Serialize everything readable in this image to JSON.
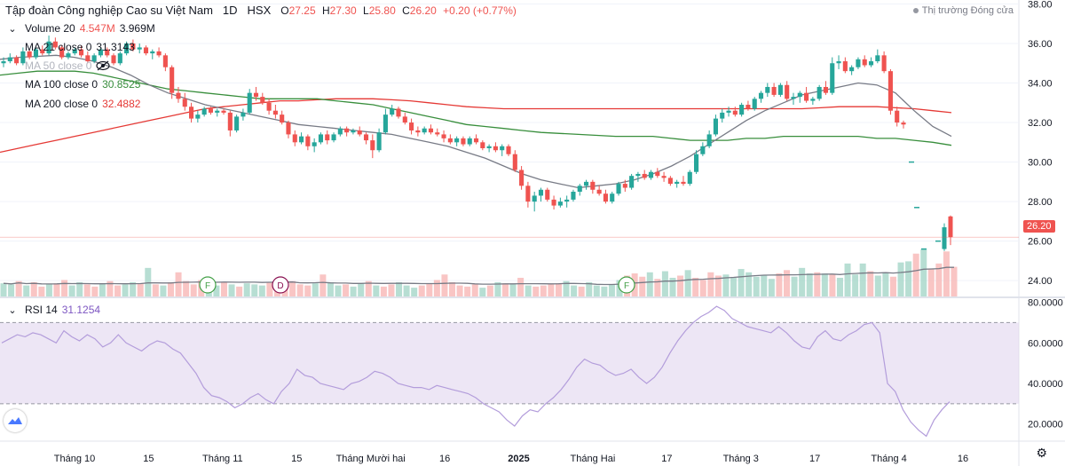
{
  "header": {
    "title": "Tập đoàn Công nghiệp Cao su Việt Nam",
    "interval": "1D",
    "exchange": "HSX",
    "open_label": "O",
    "open": "27.25",
    "high_label": "H",
    "high": "27.30",
    "low_label": "L",
    "low": "25.80",
    "close_label": "C",
    "close": "26.20",
    "change": "+0.20 (+0.77%)",
    "market_status": "Thị trường Đóng cửa"
  },
  "legends": {
    "volume": {
      "name": "Volume 20",
      "v1": "4.547M",
      "v2": "3.969M"
    },
    "ma21": {
      "name": "MA 21 close 0",
      "value": "31.3143"
    },
    "ma50": {
      "name": "MA 50 close 0",
      "value": ""
    },
    "ma100": {
      "name": "MA 100 close 0",
      "value": "30.8525"
    },
    "ma200": {
      "name": "MA 200 close 0",
      "value": "32.4882"
    },
    "rsi": {
      "name": "RSI 14",
      "value": "31.1254"
    }
  },
  "last_price_tag": "26.20",
  "colors": {
    "up": "#26a69a",
    "down": "#ef5350",
    "ma21": "#787b86",
    "ma100": "#388e3c",
    "ma200": "#e53935",
    "rsi": "#b39ddb",
    "rsi_band": "#e1d5ef"
  },
  "markers": [
    "F",
    "D",
    "F"
  ],
  "chart_data": {
    "type": "candlestick",
    "y_ticks": [
      "38.00",
      "36.00",
      "34.00",
      "32.00",
      "30.00",
      "28.00",
      "26.00",
      "24.00"
    ],
    "y_range": [
      23.2,
      38.2
    ],
    "rsi_ticks": [
      "80.0000",
      "60.0000",
      "40.0000",
      "20.0000"
    ],
    "rsi_range": [
      12,
      82
    ],
    "rsi_band": [
      30,
      70
    ],
    "x_labels": [
      "Tháng 10",
      "15",
      "Tháng 11",
      "15",
      "Tháng Mười hai",
      "16",
      "2025",
      "Tháng Hai",
      "17",
      "Tháng 3",
      "17",
      "Tháng 4",
      "16"
    ],
    "x_label_bold_index": 6,
    "candles": [
      [
        35.0,
        35.3,
        34.8,
        35.1
      ],
      [
        35.1,
        35.5,
        35.0,
        35.3
      ],
      [
        35.3,
        35.4,
        34.9,
        35.0
      ],
      [
        35.0,
        35.8,
        34.9,
        35.6
      ],
      [
        35.6,
        35.7,
        35.2,
        35.3
      ],
      [
        35.3,
        35.8,
        35.2,
        35.7
      ],
      [
        35.7,
        35.9,
        35.4,
        35.5
      ],
      [
        35.5,
        36.4,
        35.4,
        36.1
      ],
      [
        36.1,
        36.3,
        35.7,
        35.8
      ],
      [
        35.8,
        35.9,
        35.2,
        35.3
      ],
      [
        35.3,
        35.6,
        35.2,
        35.5
      ],
      [
        35.5,
        35.8,
        35.4,
        35.7
      ],
      [
        35.7,
        35.9,
        35.3,
        35.4
      ],
      [
        35.4,
        35.6,
        35.0,
        35.1
      ],
      [
        35.1,
        35.5,
        35.0,
        35.4
      ],
      [
        35.4,
        35.8,
        35.3,
        35.7
      ],
      [
        35.7,
        35.8,
        35.3,
        35.4
      ],
      [
        35.4,
        35.5,
        34.9,
        35.0
      ],
      [
        35.0,
        35.6,
        34.9,
        35.5
      ],
      [
        35.5,
        36.1,
        35.4,
        36.0
      ],
      [
        36.0,
        36.2,
        35.6,
        35.7
      ],
      [
        35.7,
        36.0,
        35.5,
        35.8
      ],
      [
        35.8,
        35.9,
        35.4,
        35.5
      ],
      [
        35.5,
        35.7,
        35.2,
        35.6
      ],
      [
        35.6,
        35.8,
        35.3,
        35.4
      ],
      [
        35.4,
        35.5,
        34.6,
        34.8
      ],
      [
        34.8,
        34.9,
        33.2,
        33.5
      ],
      [
        33.5,
        33.8,
        33.0,
        33.2
      ],
      [
        33.2,
        33.5,
        32.6,
        32.8
      ],
      [
        32.8,
        33.0,
        32.0,
        32.2
      ],
      [
        32.2,
        32.6,
        32.0,
        32.4
      ],
      [
        32.4,
        32.8,
        32.3,
        32.7
      ],
      [
        32.7,
        32.8,
        32.4,
        32.5
      ],
      [
        32.5,
        32.7,
        32.3,
        32.6
      ],
      [
        32.6,
        32.7,
        32.4,
        32.5
      ],
      [
        32.5,
        32.6,
        31.3,
        31.6
      ],
      [
        31.6,
        32.4,
        31.5,
        32.3
      ],
      [
        32.3,
        32.7,
        32.1,
        32.5
      ],
      [
        32.5,
        33.7,
        32.4,
        33.5
      ],
      [
        33.5,
        33.8,
        33.1,
        33.3
      ],
      [
        33.3,
        33.5,
        32.9,
        33.0
      ],
      [
        33.0,
        33.2,
        32.4,
        32.6
      ],
      [
        32.6,
        32.9,
        32.2,
        32.4
      ],
      [
        32.4,
        32.6,
        31.9,
        32.0
      ],
      [
        32.0,
        32.1,
        31.2,
        31.4
      ],
      [
        31.4,
        31.6,
        30.8,
        31.0
      ],
      [
        31.0,
        31.5,
        30.9,
        31.3
      ],
      [
        31.3,
        31.4,
        30.6,
        30.8
      ],
      [
        30.8,
        31.2,
        30.5,
        31.0
      ],
      [
        31.0,
        31.5,
        30.9,
        31.4
      ],
      [
        31.4,
        31.6,
        30.9,
        31.1
      ],
      [
        31.1,
        31.5,
        31.0,
        31.4
      ],
      [
        31.4,
        31.8,
        31.3,
        31.7
      ],
      [
        31.7,
        31.8,
        31.3,
        31.5
      ],
      [
        31.5,
        31.7,
        31.4,
        31.6
      ],
      [
        31.6,
        31.8,
        31.3,
        31.4
      ],
      [
        31.4,
        31.5,
        30.9,
        31.1
      ],
      [
        31.1,
        31.4,
        30.2,
        30.6
      ],
      [
        30.6,
        31.7,
        30.5,
        31.5
      ],
      [
        31.5,
        32.7,
        31.4,
        32.4
      ],
      [
        32.4,
        32.9,
        32.3,
        32.7
      ],
      [
        32.7,
        32.8,
        32.2,
        32.3
      ],
      [
        32.3,
        32.5,
        31.9,
        32.0
      ],
      [
        32.0,
        32.2,
        31.4,
        31.6
      ],
      [
        31.6,
        31.8,
        31.3,
        31.5
      ],
      [
        31.5,
        31.8,
        31.4,
        31.7
      ],
      [
        31.7,
        31.9,
        31.4,
        31.5
      ],
      [
        31.5,
        31.7,
        31.3,
        31.4
      ],
      [
        31.4,
        31.6,
        31.0,
        31.2
      ],
      [
        31.2,
        31.4,
        30.9,
        31.0
      ],
      [
        31.0,
        31.3,
        30.8,
        31.2
      ],
      [
        31.2,
        31.3,
        30.8,
        30.9
      ],
      [
        30.9,
        31.3,
        30.8,
        31.2
      ],
      [
        31.2,
        31.4,
        30.9,
        31.0
      ],
      [
        31.0,
        31.1,
        30.6,
        30.7
      ],
      [
        30.7,
        30.9,
        30.5,
        30.8
      ],
      [
        30.8,
        31.0,
        30.5,
        30.6
      ],
      [
        30.6,
        30.9,
        30.3,
        30.8
      ],
      [
        30.8,
        30.9,
        30.3,
        30.4
      ],
      [
        30.4,
        30.6,
        29.5,
        29.6
      ],
      [
        29.6,
        29.8,
        28.6,
        28.8
      ],
      [
        28.8,
        29.0,
        27.7,
        28.0
      ],
      [
        28.0,
        28.5,
        27.5,
        28.3
      ],
      [
        28.3,
        28.7,
        28.0,
        28.6
      ],
      [
        28.6,
        28.7,
        28.0,
        28.1
      ],
      [
        28.1,
        28.3,
        27.6,
        27.8
      ],
      [
        27.8,
        28.2,
        27.7,
        28.0
      ],
      [
        28.0,
        28.3,
        27.7,
        28.1
      ],
      [
        28.1,
        28.6,
        28.0,
        28.5
      ],
      [
        28.5,
        28.9,
        28.3,
        28.8
      ],
      [
        28.8,
        29.1,
        28.6,
        29.0
      ],
      [
        29.0,
        29.1,
        28.4,
        28.6
      ],
      [
        28.6,
        28.8,
        28.3,
        28.4
      ],
      [
        28.4,
        28.6,
        27.9,
        28.0
      ],
      [
        28.0,
        28.5,
        27.9,
        28.4
      ],
      [
        28.4,
        29.0,
        28.3,
        28.9
      ],
      [
        28.9,
        29.1,
        28.5,
        28.7
      ],
      [
        28.7,
        29.4,
        28.6,
        29.3
      ],
      [
        29.3,
        29.5,
        29.0,
        29.4
      ],
      [
        29.4,
        29.6,
        29.1,
        29.2
      ],
      [
        29.2,
        29.6,
        29.1,
        29.5
      ],
      [
        29.5,
        29.7,
        29.2,
        29.3
      ],
      [
        29.3,
        29.5,
        29.0,
        29.2
      ],
      [
        29.2,
        29.3,
        28.8,
        28.9
      ],
      [
        28.9,
        29.1,
        28.7,
        29.0
      ],
      [
        29.0,
        29.3,
        28.8,
        28.9
      ],
      [
        28.9,
        29.6,
        28.8,
        29.5
      ],
      [
        29.5,
        30.6,
        29.4,
        30.4
      ],
      [
        30.4,
        31.0,
        30.3,
        30.8
      ],
      [
        30.8,
        31.6,
        30.7,
        31.4
      ],
      [
        31.4,
        32.4,
        31.3,
        32.2
      ],
      [
        32.2,
        32.7,
        32.0,
        32.5
      ],
      [
        32.5,
        32.8,
        32.3,
        32.6
      ],
      [
        32.6,
        32.8,
        32.3,
        32.4
      ],
      [
        32.4,
        33.0,
        32.3,
        32.9
      ],
      [
        32.9,
        33.1,
        32.6,
        32.7
      ],
      [
        32.7,
        33.3,
        32.6,
        33.2
      ],
      [
        33.2,
        33.6,
        33.0,
        33.5
      ],
      [
        33.5,
        34.0,
        33.3,
        33.8
      ],
      [
        33.8,
        34.0,
        33.3,
        33.4
      ],
      [
        33.4,
        34.0,
        33.3,
        33.9
      ],
      [
        33.9,
        34.1,
        33.1,
        33.2
      ],
      [
        33.2,
        33.5,
        32.9,
        33.3
      ],
      [
        33.3,
        33.6,
        33.0,
        33.5
      ],
      [
        33.5,
        33.8,
        33.0,
        33.1
      ],
      [
        33.1,
        33.3,
        32.9,
        33.2
      ],
      [
        33.2,
        33.9,
        33.1,
        33.8
      ],
      [
        33.8,
        34.1,
        33.4,
        33.5
      ],
      [
        33.5,
        35.3,
        33.4,
        35.0
      ],
      [
        35.0,
        35.4,
        34.7,
        35.1
      ],
      [
        35.1,
        35.3,
        34.5,
        34.6
      ],
      [
        34.6,
        34.9,
        34.4,
        34.8
      ],
      [
        34.8,
        35.3,
        34.7,
        35.2
      ],
      [
        35.2,
        35.4,
        34.8,
        34.9
      ],
      [
        34.9,
        35.3,
        34.8,
        35.1
      ],
      [
        35.1,
        35.7,
        35.0,
        35.4
      ],
      [
        35.4,
        35.6,
        34.5,
        34.6
      ],
      [
        34.6,
        34.7,
        32.4,
        32.6
      ],
      [
        32.6,
        32.8,
        31.8,
        32.0
      ],
      [
        32.0,
        32.1,
        31.7,
        31.9
      ]
    ],
    "late_ticks": [
      [
        29.9,
        30.0
      ],
      [
        27.65,
        27.7
      ],
      [
        25.55,
        25.6
      ],
      [
        25.6,
        26.0
      ]
    ],
    "late_up_candle": [
      25.6,
      26.9,
      25.5,
      26.7
    ],
    "late_down_candle": [
      27.25,
      27.3,
      25.8,
      26.2
    ],
    "ma21": [
      35.2,
      35.3,
      35.35,
      35.4,
      35.3,
      35.1,
      34.8,
      34.4,
      33.9,
      33.5,
      33.2,
      32.9,
      32.7,
      32.5,
      32.3,
      32.1,
      31.9,
      31.8,
      31.7,
      31.6,
      31.5,
      31.4,
      31.2,
      31.0,
      30.8,
      30.5,
      30.2,
      29.8,
      29.4,
      29.1,
      28.9,
      28.7,
      28.8,
      28.9,
      29.1,
      29.4,
      29.8,
      30.3,
      30.9,
      31.5,
      32.1,
      32.6,
      33.0,
      33.4,
      33.6,
      33.8,
      34.0,
      33.9,
      33.5,
      32.6,
      31.8,
      31.3
    ],
    "ma100": [
      34.4,
      34.5,
      34.6,
      34.6,
      34.6,
      34.5,
      34.3,
      34.1,
      33.9,
      33.7,
      33.6,
      33.5,
      33.4,
      33.3,
      33.2,
      33.2,
      33.2,
      33.2,
      33.1,
      33.0,
      32.9,
      32.7,
      32.5,
      32.3,
      32.1,
      31.9,
      31.8,
      31.7,
      31.6,
      31.5,
      31.45,
      31.4,
      31.35,
      31.3,
      31.3,
      31.3,
      31.2,
      31.1,
      31.1,
      31.1,
      31.2,
      31.2,
      31.3,
      31.3,
      31.3,
      31.3,
      31.3,
      31.2,
      31.2,
      31.1,
      31.0,
      30.85
    ],
    "ma200": [
      30.5,
      30.7,
      30.9,
      31.1,
      31.3,
      31.5,
      31.7,
      31.9,
      32.1,
      32.3,
      32.5,
      32.7,
      32.8,
      32.9,
      33.0,
      33.1,
      33.1,
      33.15,
      33.2,
      33.2,
      33.2,
      33.15,
      33.1,
      33.0,
      32.9,
      32.8,
      32.75,
      32.7,
      32.7,
      32.7,
      32.7,
      32.7,
      32.7,
      32.7,
      32.7,
      32.7,
      32.7,
      32.7,
      32.7,
      32.7,
      32.7,
      32.7,
      32.7,
      32.7,
      32.75,
      32.8,
      32.8,
      32.8,
      32.75,
      32.7,
      32.6,
      32.5
    ],
    "rsi": [
      60,
      62,
      64,
      63,
      65,
      64,
      62,
      60,
      66,
      63,
      61,
      64,
      62,
      58,
      60,
      64,
      60,
      58,
      56,
      59,
      61,
      60,
      57,
      55,
      50,
      45,
      38,
      34,
      33,
      31,
      28,
      30,
      33,
      35,
      32,
      30,
      36,
      40,
      47,
      44,
      43,
      40,
      39,
      38,
      37,
      40,
      41,
      43,
      46,
      45,
      43,
      40,
      39,
      38,
      38,
      37,
      39,
      38,
      37,
      36,
      35,
      33,
      30,
      28,
      26,
      22,
      19,
      24,
      27,
      26,
      30,
      33,
      37,
      42,
      48,
      52,
      50,
      49,
      46,
      44,
      45,
      47,
      43,
      40,
      43,
      48,
      55,
      61,
      66,
      70,
      73,
      75,
      78,
      76,
      72,
      70,
      68,
      67,
      66,
      65,
      68,
      65,
      61,
      58,
      57,
      63,
      66,
      62,
      61,
      64,
      66,
      69,
      70,
      65,
      40,
      36,
      27,
      21,
      17,
      14,
      22,
      27,
      31
    ],
    "volume": [
      1.2,
      1.1,
      1.4,
      1.0,
      1.3,
      0.9,
      1.1,
      1.2,
      1.5,
      1.0,
      1.3,
      1.1,
      0.9,
      1.2,
      1.4,
      1.0,
      1.1,
      1.3,
      1.2,
      2.6,
      1.1,
      1.0,
      1.3,
      2.2,
      1.4,
      1.1,
      1.5,
      1.2,
      1.0,
      1.3,
      1.1,
      0.9,
      1.2,
      1.1,
      1.0,
      1.3,
      1.2,
      1.5,
      1.4,
      1.1,
      1.0,
      1.2,
      2.0,
      1.3,
      1.0,
      1.1,
      0.9,
      1.2,
      1.4,
      1.0,
      0.9,
      1.1,
      1.3,
      1.0,
      0.8,
      1.0,
      1.2,
      1.5,
      2.0,
      1.3,
      1.0,
      0.9,
      1.1,
      0.8,
      1.0,
      1.3,
      1.2,
      1.1,
      1.7,
      1.0,
      0.9,
      1.0,
      1.1,
      1.2,
      1.4,
      1.0,
      0.9,
      1.3,
      1.0,
      0.9,
      1.1,
      1.5,
      1.9,
      2.1,
      1.8,
      2.2,
      1.6,
      2.3,
      1.7,
      1.9,
      2.4,
      1.7,
      1.5,
      2.2,
      1.9,
      2.0,
      1.7,
      2.5,
      2.2,
      1.8,
      1.9,
      1.6,
      2.1,
      2.4,
      1.8,
      2.6,
      2.1,
      2.2,
      2.1,
      2.0,
      1.7,
      3.0,
      2.0,
      3.0,
      2.3,
      1.9,
      2.2,
      1.8,
      3.1,
      3.2,
      3.9,
      4.3,
      2.5,
      3.0,
      4.1,
      2.7
    ]
  }
}
